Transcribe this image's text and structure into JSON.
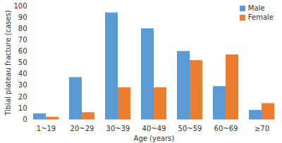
{
  "chart_data": {
    "type": "bar",
    "x_label": "Age (years)",
    "y_label": "Tibial plateau fracture (cases)",
    "categories": [
      "1~19",
      "20~29",
      "30~39",
      "40~49",
      "50~59",
      "60~69",
      "≥70"
    ],
    "series": [
      {
        "name": "Male",
        "color": "#5b9bd5",
        "values": [
          5,
          37,
          94,
          80,
          60,
          29,
          8
        ]
      },
      {
        "name": "Female",
        "color": "#ed7d31",
        "values": [
          2,
          6,
          28,
          28,
          52,
          57,
          14
        ]
      }
    ],
    "ylim": [
      0,
      100
    ],
    "yticks": [
      0,
      10,
      20,
      30,
      40,
      50,
      60,
      70,
      80,
      90,
      100
    ],
    "grid": false,
    "legend": "top-right"
  }
}
